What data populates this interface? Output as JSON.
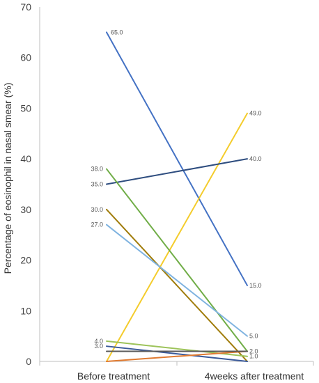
{
  "chart_data": {
    "type": "line",
    "title": "",
    "xlabel": "",
    "ylabel": "Percentage of eosinophil in nasal smear (%)",
    "categories": [
      "Before treatment",
      "4weeks after treatment"
    ],
    "ylim": [
      0,
      70
    ],
    "yticks": [
      0,
      10,
      20,
      30,
      40,
      50,
      60,
      70
    ],
    "grid": false,
    "series": [
      {
        "values": [
          65.0,
          15.0
        ],
        "color": "#4472C4",
        "labels": [
          "65.0",
          "15.0"
        ]
      },
      {
        "values": [
          0,
          49.0
        ],
        "color": "#F4CC2C",
        "labels": [
          "",
          "49.0"
        ]
      },
      {
        "values": [
          35.0,
          40.0
        ],
        "color": "#2E4D7F",
        "labels": [
          "35.0",
          "40.0"
        ]
      },
      {
        "values": [
          38.0,
          2.0
        ],
        "color": "#70AD47",
        "labels": [
          "38.0",
          ""
        ]
      },
      {
        "values": [
          30.0,
          0
        ],
        "color": "#A07C0A",
        "labels": [
          "30.0",
          ""
        ]
      },
      {
        "values": [
          27.0,
          5.0
        ],
        "color": "#7FB3E0",
        "labels": [
          "27.0",
          "5.0"
        ]
      },
      {
        "values": [
          4.0,
          1.0
        ],
        "color": "#9DC35A",
        "labels": [
          "4.0",
          "1.0"
        ]
      },
      {
        "values": [
          3.0,
          0
        ],
        "color": "#3B5A9A",
        "labels": [
          "3.0",
          ""
        ]
      },
      {
        "values": [
          0,
          2.0
        ],
        "color": "#E07A30",
        "labels": [
          "",
          "2.0"
        ]
      },
      {
        "values": [
          2.0,
          2.0
        ],
        "color": "#5A5A5A",
        "labels": [
          "",
          ""
        ]
      }
    ]
  }
}
